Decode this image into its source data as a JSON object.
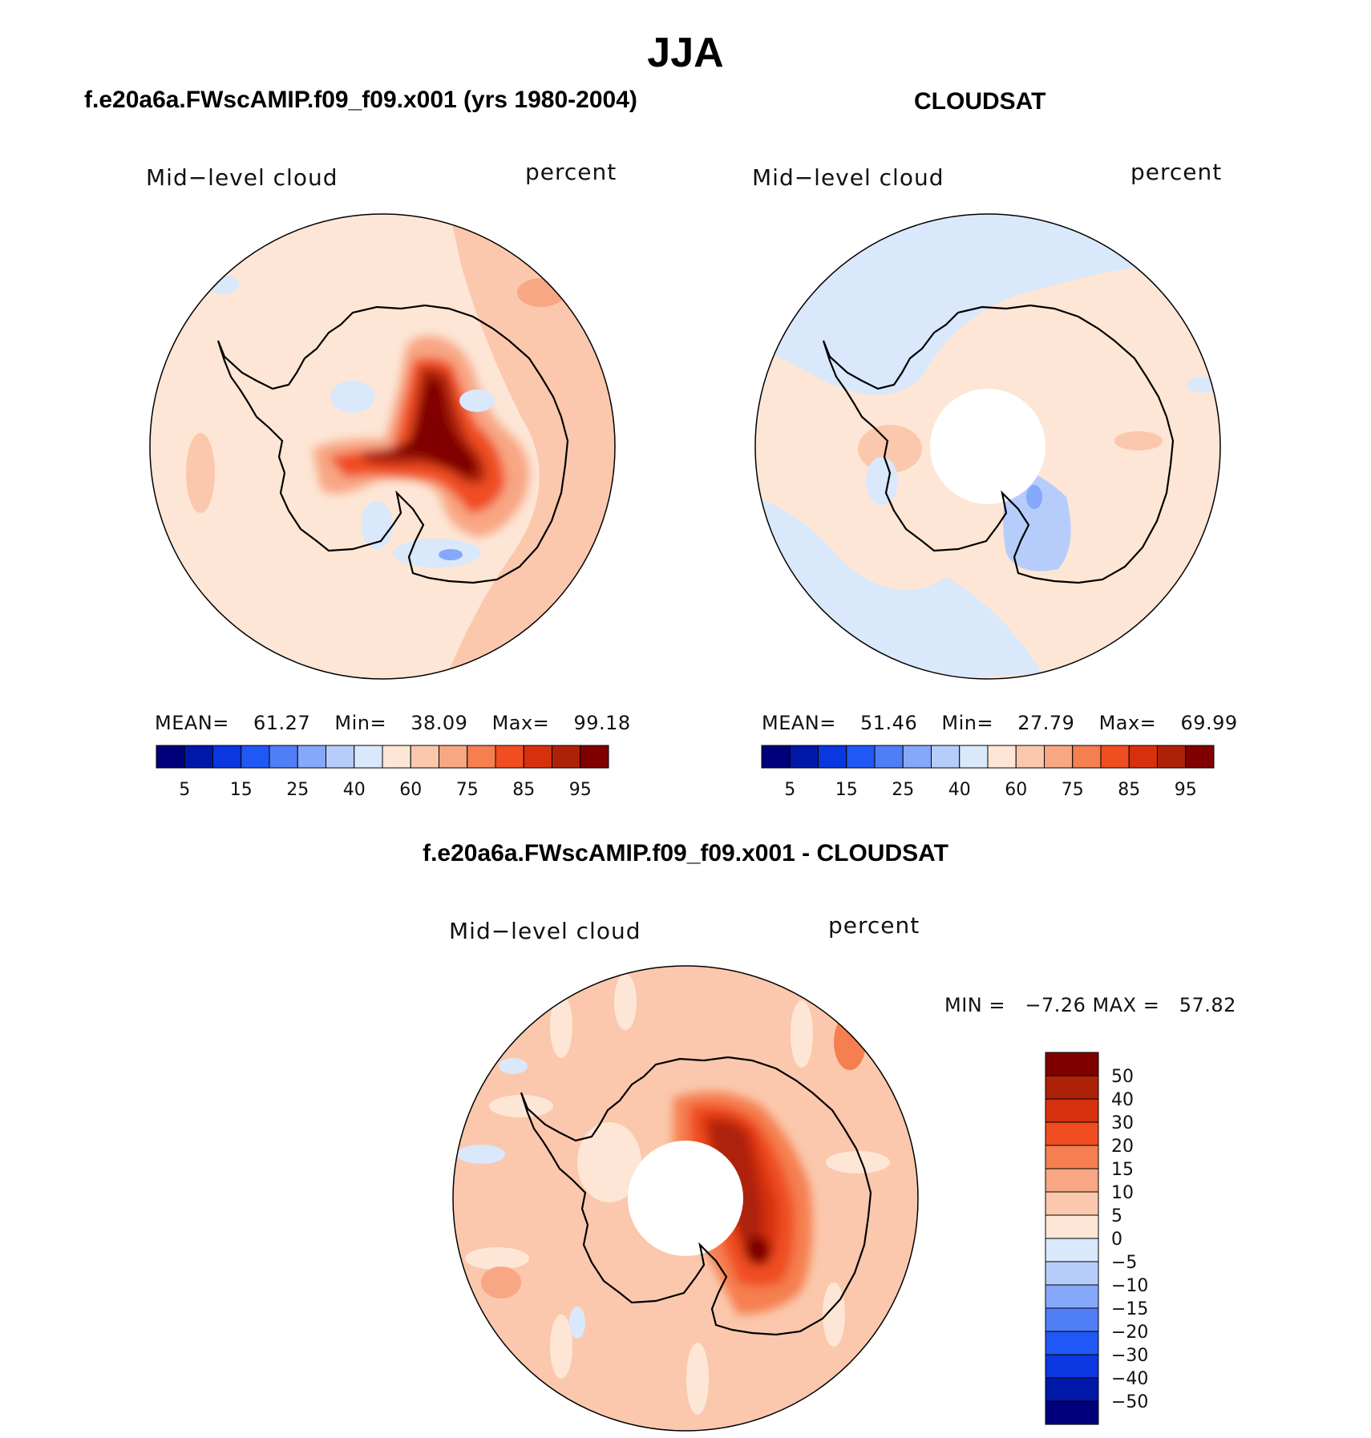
{
  "figure": {
    "season_title": "JJA",
    "panels": [
      {
        "id": "model",
        "case_title": "f.e20a6a.FWscAMIP.f09_f09.x001 (yrs 1980-2004)",
        "variable_label": "Mid−level cloud",
        "units_label": "percent",
        "stats": {
          "mean_label": "MEAN=",
          "mean": "61.27",
          "min_label": "Min=",
          "min": "38.09",
          "max_label": "Max=",
          "max": "99.18"
        },
        "colorbar_ticks": [
          "5",
          "15",
          "25",
          "40",
          "60",
          "75",
          "85",
          "95"
        ]
      },
      {
        "id": "obs",
        "case_title": "CLOUDSAT",
        "variable_label": "Mid−level cloud",
        "units_label": "percent",
        "stats": {
          "mean_label": "MEAN=",
          "mean": "51.46",
          "min_label": "Min=",
          "min": "27.79",
          "max_label": "Max=",
          "max": "69.99"
        },
        "colorbar_ticks": [
          "5",
          "15",
          "25",
          "40",
          "60",
          "75",
          "85",
          "95"
        ]
      },
      {
        "id": "diff",
        "case_title": "f.e20a6a.FWscAMIP.f09_f09.x001 - CLOUDSAT",
        "variable_label": "Mid−level cloud",
        "units_label": "percent",
        "stats_text": "MIN =   −7.26 MAX =   57.82",
        "colorbar_ticks": [
          "50",
          "40",
          "30",
          "20",
          "15",
          "10",
          "5",
          "0",
          "−5",
          "−10",
          "−15",
          "−20",
          "−30",
          "−40",
          "−50"
        ]
      }
    ]
  },
  "colors": {
    "abs_palette": [
      "#00007a",
      "#0018a8",
      "#0a37e0",
      "#2058f5",
      "#4f7ef7",
      "#86a8fa",
      "#b6cdfb",
      "#d9e8fb",
      "#fde6d6",
      "#fbc8ad",
      "#f8a683",
      "#f57f50",
      "#f04d20",
      "#d7300e",
      "#ad2108",
      "#800000"
    ],
    "diff_palette": [
      "#800000",
      "#ad2108",
      "#d7300e",
      "#f04d20",
      "#f57f50",
      "#f8a683",
      "#fbc8ad",
      "#fde6d6",
      "#d9e8fb",
      "#b6cdfb",
      "#86a8fa",
      "#4f7ef7",
      "#2058f5",
      "#0a37e0",
      "#0018a8",
      "#00007a"
    ],
    "coastline": "#000000",
    "missing": "#ffffff"
  }
}
